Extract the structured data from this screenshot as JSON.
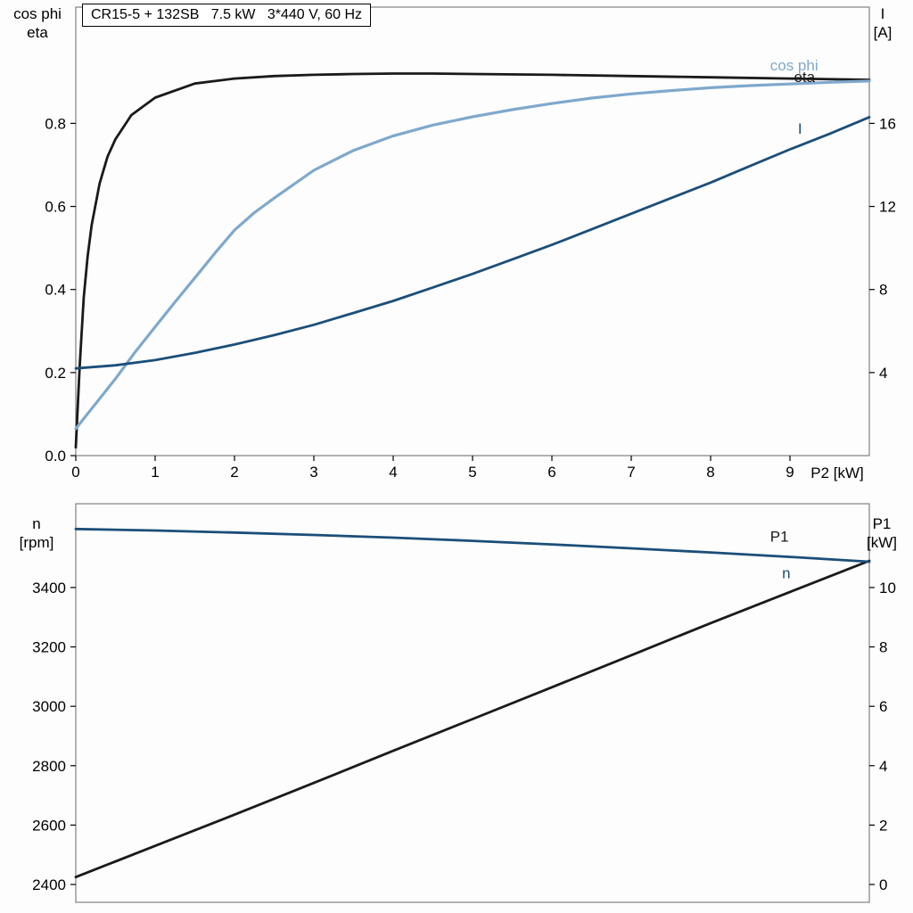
{
  "title_box": "CR15-5 + 132SB   7.5 kW   3*440 V, 60 Hz",
  "colors": {
    "black_curve": "#1a1a1a",
    "dark_blue": "#1b4e79",
    "light_blue": "#7fa8cc",
    "frame": "#808080"
  },
  "chart_data": [
    {
      "type": "line",
      "name": "motor-electrical-curves",
      "left_axis_label_lines": [
        "cos phi",
        "eta"
      ],
      "right_axis_label_lines": [
        "I",
        "[A]"
      ],
      "x_axis_label": "P2 [kW]",
      "xlim": [
        0,
        10
      ],
      "left_ylim": [
        0,
        1.08
      ],
      "right_ylim": [
        0,
        21.6
      ],
      "grid": false,
      "x_ticks": [
        {
          "value": 0,
          "label": "0"
        },
        {
          "value": 1,
          "label": "1"
        },
        {
          "value": 2,
          "label": "2"
        },
        {
          "value": 3,
          "label": "3"
        },
        {
          "value": 4,
          "label": "4"
        },
        {
          "value": 5,
          "label": "5"
        },
        {
          "value": 6,
          "label": "6"
        },
        {
          "value": 7,
          "label": "7"
        },
        {
          "value": 8,
          "label": "8"
        },
        {
          "value": 9,
          "label": "9"
        }
      ],
      "left_ticks": [
        {
          "value": 0.0,
          "label": "0.0"
        },
        {
          "value": 0.2,
          "label": "0.2"
        },
        {
          "value": 0.4,
          "label": "0.4"
        },
        {
          "value": 0.6,
          "label": "0.6"
        },
        {
          "value": 0.8,
          "label": "0.8"
        }
      ],
      "right_ticks": [
        {
          "value": 4,
          "label": "4"
        },
        {
          "value": 8,
          "label": "8"
        },
        {
          "value": 12,
          "label": "12"
        },
        {
          "value": 16,
          "label": "16"
        }
      ],
      "series": [
        {
          "name": "eta",
          "axis": "left",
          "color": "#1a1a1a",
          "width": 2.8,
          "label": {
            "text": "eta",
            "x": 9.05,
            "y": 0.9
          },
          "x": [
            0,
            0.05,
            0.1,
            0.15,
            0.2,
            0.3,
            0.4,
            0.5,
            0.7,
            1,
            1.5,
            2,
            2.5,
            3,
            3.5,
            4,
            4.5,
            5,
            6,
            7,
            8,
            9,
            10
          ],
          "y": [
            0.02,
            0.22,
            0.38,
            0.48,
            0.555,
            0.655,
            0.72,
            0.762,
            0.82,
            0.862,
            0.896,
            0.908,
            0.914,
            0.917,
            0.919,
            0.92,
            0.92,
            0.919,
            0.917,
            0.914,
            0.911,
            0.908,
            0.905
          ]
        },
        {
          "name": "cos-phi",
          "axis": "left",
          "color": "#7fa8cc",
          "width": 3.2,
          "label": {
            "text": "cos phi",
            "x": 8.75,
            "y": 0.928
          },
          "x": [
            0,
            0.25,
            0.5,
            0.75,
            1,
            1.25,
            1.5,
            1.75,
            2,
            2.25,
            2.5,
            3,
            3.5,
            4,
            4.5,
            5,
            5.5,
            6,
            6.5,
            7,
            7.5,
            8,
            8.5,
            9,
            9.5,
            10
          ],
          "y": [
            0.065,
            0.125,
            0.185,
            0.25,
            0.31,
            0.37,
            0.428,
            0.487,
            0.543,
            0.585,
            0.62,
            0.687,
            0.735,
            0.77,
            0.796,
            0.816,
            0.833,
            0.848,
            0.861,
            0.871,
            0.879,
            0.886,
            0.891,
            0.895,
            0.899,
            0.902
          ]
        },
        {
          "name": "current",
          "axis": "right",
          "color": "#1b4e79",
          "width": 2.8,
          "label": {
            "text": "I",
            "x": 9.1,
            "y": 15.5
          },
          "x": [
            0,
            0.5,
            1,
            1.5,
            2,
            2.5,
            3,
            3.5,
            4,
            4.5,
            5,
            5.5,
            6,
            6.5,
            7,
            7.5,
            8,
            8.5,
            9,
            9.5,
            10
          ],
          "y": [
            4.2,
            4.35,
            4.6,
            4.95,
            5.35,
            5.8,
            6.3,
            6.87,
            7.45,
            8.1,
            8.75,
            9.45,
            10.15,
            10.9,
            11.65,
            12.4,
            13.15,
            13.95,
            14.75,
            15.5,
            16.3
          ]
        }
      ]
    },
    {
      "type": "line",
      "name": "speed-and-input-power-curves",
      "left_axis_label_lines": [
        "n",
        "[rpm]"
      ],
      "right_axis_label_lines": [
        "P1",
        "[kW]"
      ],
      "x_axis_label": "",
      "xlim": [
        0,
        10
      ],
      "left_ylim": [
        2340,
        3682
      ],
      "right_ylim": [
        -0.6,
        12.82
      ],
      "grid": false,
      "x_ticks": [],
      "left_ticks": [
        {
          "value": 2400,
          "label": "2400"
        },
        {
          "value": 2600,
          "label": "2600"
        },
        {
          "value": 2800,
          "label": "2800"
        },
        {
          "value": 3000,
          "label": "3000"
        },
        {
          "value": 3200,
          "label": "3200"
        },
        {
          "value": 3400,
          "label": "3400"
        }
      ],
      "right_ticks": [
        {
          "value": 0,
          "label": "0"
        },
        {
          "value": 2,
          "label": "2"
        },
        {
          "value": 4,
          "label": "4"
        },
        {
          "value": 6,
          "label": "6"
        },
        {
          "value": 8,
          "label": "8"
        },
        {
          "value": 10,
          "label": "10"
        }
      ],
      "series": [
        {
          "name": "input-power-P1",
          "axis": "right",
          "color": "#1a1a1a",
          "width": 2.8,
          "label": {
            "text": "P1",
            "x": 8.75,
            "y": 11.55
          },
          "x": [
            0,
            1,
            2,
            3,
            4,
            5,
            6,
            7,
            8,
            9,
            10
          ],
          "y": [
            0.25,
            1.3,
            2.35,
            3.42,
            4.5,
            5.57,
            6.64,
            7.72,
            8.8,
            9.85,
            10.9
          ]
        },
        {
          "name": "speed-n",
          "axis": "left",
          "color": "#1b4e79",
          "width": 2.8,
          "label": {
            "text": "n",
            "x": 8.9,
            "y": 3432
          },
          "x": [
            0,
            1,
            2,
            3,
            4,
            5,
            6,
            7,
            8,
            9,
            10
          ],
          "y": [
            3597,
            3592,
            3585,
            3577,
            3568,
            3557,
            3545,
            3532,
            3518,
            3503,
            3487
          ]
        }
      ]
    }
  ]
}
